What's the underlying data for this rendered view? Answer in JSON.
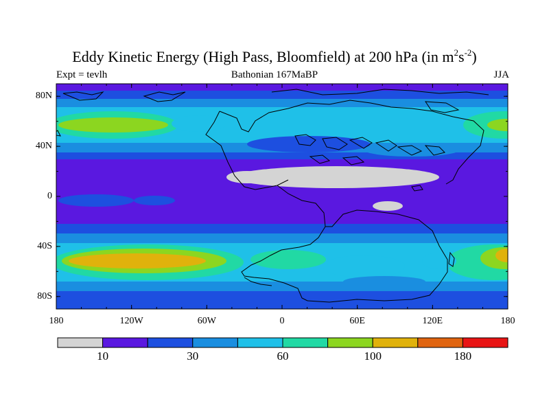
{
  "title": {
    "main": "Eddy Kinetic Energy (High Pass, Bloomfield) at 200 hPa (in m",
    "sup1": "2",
    "mid": "s",
    "sup2": "-2",
    "end": ")"
  },
  "subtitle": {
    "left": "Expt = tevlh",
    "center": "Bathonian 167MaBP",
    "right": "JJA"
  },
  "map": {
    "lat_ticks": [
      {
        "value": 80,
        "label": "80N"
      },
      {
        "value": 40,
        "label": "40N"
      },
      {
        "value": 0,
        "label": "0"
      },
      {
        "value": -40,
        "label": "40S"
      },
      {
        "value": -80,
        "label": "80S"
      }
    ],
    "lon_ticks": [
      {
        "value": -180,
        "label": "180"
      },
      {
        "value": -120,
        "label": "120W"
      },
      {
        "value": -60,
        "label": "60W"
      },
      {
        "value": 0,
        "label": "0"
      },
      {
        "value": 60,
        "label": "60E"
      },
      {
        "value": 120,
        "label": "120E"
      },
      {
        "value": 180,
        "label": "180"
      }
    ],
    "lon_range": [
      -180,
      180
    ],
    "lat_range": [
      -90,
      90
    ],
    "contour_colors": [
      "#d4d4d4",
      "#5a18e0",
      "#1d4fe0",
      "#1a8ee0",
      "#1fc0e8",
      "#21d9a4",
      "#8cd620",
      "#e0b20c",
      "#e06410",
      "#e81414"
    ]
  },
  "colorbar": {
    "colors": [
      "#d4d4d4",
      "#5a18e0",
      "#1d4fe0",
      "#1a8ee0",
      "#1fc0e8",
      "#21d9a4",
      "#8cd620",
      "#e0b20c",
      "#e06410",
      "#e81414"
    ],
    "labels": [
      {
        "boundary": 1,
        "text": "10"
      },
      {
        "boundary": 3,
        "text": "30"
      },
      {
        "boundary": 5,
        "text": "60"
      },
      {
        "boundary": 7,
        "text": "100"
      },
      {
        "boundary": 9,
        "text": "180"
      }
    ]
  }
}
